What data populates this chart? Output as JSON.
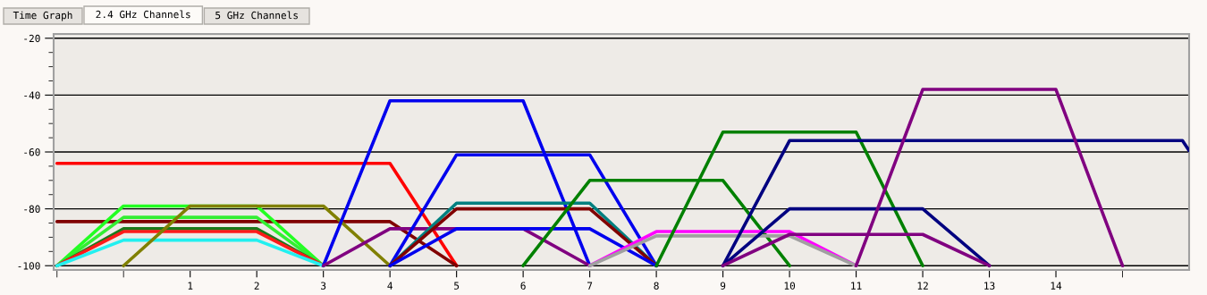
{
  "chart_data": {
    "type": "line",
    "annotations": [
      "Time Graph",
      "2.4 GHz Channels",
      "5 GHz Channels"
    ],
    "xlim": [
      -1.05,
      16
    ],
    "xticks": [
      {
        "value": -1,
        "label": null
      },
      {
        "value": 0,
        "label": null
      },
      1,
      2,
      3,
      4,
      5,
      6,
      7,
      8,
      9,
      10,
      11,
      12,
      13,
      14,
      {
        "value": 15,
        "label": null
      }
    ],
    "ylim": [
      -101.5,
      -18.5
    ],
    "yticks": [
      -20,
      {
        "value": -25,
        "label": null
      },
      {
        "value": -30,
        "label": null
      },
      {
        "value": -35,
        "label": null
      },
      -40,
      {
        "value": -45,
        "label": null
      },
      {
        "value": -50,
        "label": null
      },
      {
        "value": -55,
        "label": null
      },
      -60,
      {
        "value": -65,
        "label": null
      },
      {
        "value": -70,
        "label": null
      },
      {
        "value": -75,
        "label": null
      },
      -80,
      {
        "value": -85,
        "label": null
      },
      {
        "value": -90,
        "label": null
      },
      {
        "value": -95,
        "label": null
      },
      -100
    ],
    "grid": "y",
    "marker": "none",
    "line_style": "solid",
    "series": [
      {
        "color": "#ff0000",
        "x": [
          -1,
          4,
          5
        ],
        "values": [
          -64,
          -64,
          -100
        ]
      },
      {
        "color": "#800000",
        "x": [
          -1,
          4,
          5
        ],
        "values": [
          -84.5,
          -84.5,
          -100
        ]
      },
      {
        "color": "#22ff22",
        "x": [
          -1,
          0,
          2,
          3
        ],
        "values": [
          -100,
          -79,
          -79,
          -100
        ]
      },
      {
        "color": "#33ee33",
        "x": [
          -1,
          0,
          2,
          3
        ],
        "values": [
          -100,
          -83,
          -83,
          -100
        ]
      },
      {
        "color": "#1a7a1a",
        "x": [
          -1,
          0,
          2,
          3
        ],
        "values": [
          -100,
          -87,
          -87,
          -100
        ]
      },
      {
        "color": "#ff1a1a",
        "x": [
          -1,
          0,
          2,
          3
        ],
        "values": [
          -100,
          -88,
          -88,
          -100
        ]
      },
      {
        "color": "#22f0f0",
        "x": [
          -1,
          0,
          2,
          3
        ],
        "values": [
          -100,
          -91,
          -91,
          -100
        ]
      },
      {
        "color": "#808000",
        "x": [
          0,
          1,
          3,
          4
        ],
        "values": [
          -100,
          -79,
          -79,
          -100
        ]
      },
      {
        "color": "#0000ee",
        "x": [
          3,
          4,
          6,
          7
        ],
        "values": [
          -100,
          -42,
          -42,
          -100
        ]
      },
      {
        "color": "#800080",
        "x": [
          3,
          4,
          6,
          7
        ],
        "values": [
          -100,
          -87,
          -87,
          -100
        ]
      },
      {
        "color": "#0000ee",
        "x": [
          4,
          5,
          7,
          8
        ],
        "values": [
          -100,
          -61,
          -61,
          -100
        ]
      },
      {
        "color": "#008080",
        "x": [
          4,
          5,
          7,
          8
        ],
        "values": [
          -100,
          -78,
          -78,
          -100
        ]
      },
      {
        "color": "#800000",
        "x": [
          4,
          5,
          7,
          8
        ],
        "values": [
          -100,
          -80,
          -80,
          -100
        ]
      },
      {
        "color": "#0000ee",
        "x": [
          4,
          5,
          7,
          8
        ],
        "values": [
          -100,
          -87,
          -87,
          -100
        ]
      },
      {
        "color": "#008000",
        "x": [
          6,
          7,
          9,
          10
        ],
        "values": [
          -100,
          -70,
          -70,
          -100
        ]
      },
      {
        "color": "#ff00ff",
        "x": [
          7,
          8,
          10,
          11
        ],
        "values": [
          -100,
          -88,
          -88,
          -100
        ]
      },
      {
        "color": "#a0a0a0",
        "x": [
          7,
          8,
          10,
          11
        ],
        "values": [
          -100,
          -89.5,
          -89.5,
          -100
        ]
      },
      {
        "color": "#008000",
        "x": [
          8,
          9,
          11,
          12
        ],
        "values": [
          -100,
          -53,
          -53,
          -100
        ]
      },
      {
        "color": "#000080",
        "x": [
          9,
          10,
          15.9,
          16
        ],
        "values": [
          -100,
          -56,
          -56,
          -59.5
        ]
      },
      {
        "color": "#000080",
        "x": [
          9,
          10,
          12,
          13
        ],
        "values": [
          -100,
          -80,
          -80,
          -100
        ]
      },
      {
        "color": "#800080",
        "x": [
          9,
          10,
          12,
          13
        ],
        "values": [
          -100,
          -89,
          -89,
          -100
        ]
      },
      {
        "color": "#800080",
        "x": [
          11,
          12,
          14,
          15
        ],
        "values": [
          -100,
          -38,
          -38,
          -100
        ]
      }
    ]
  }
}
